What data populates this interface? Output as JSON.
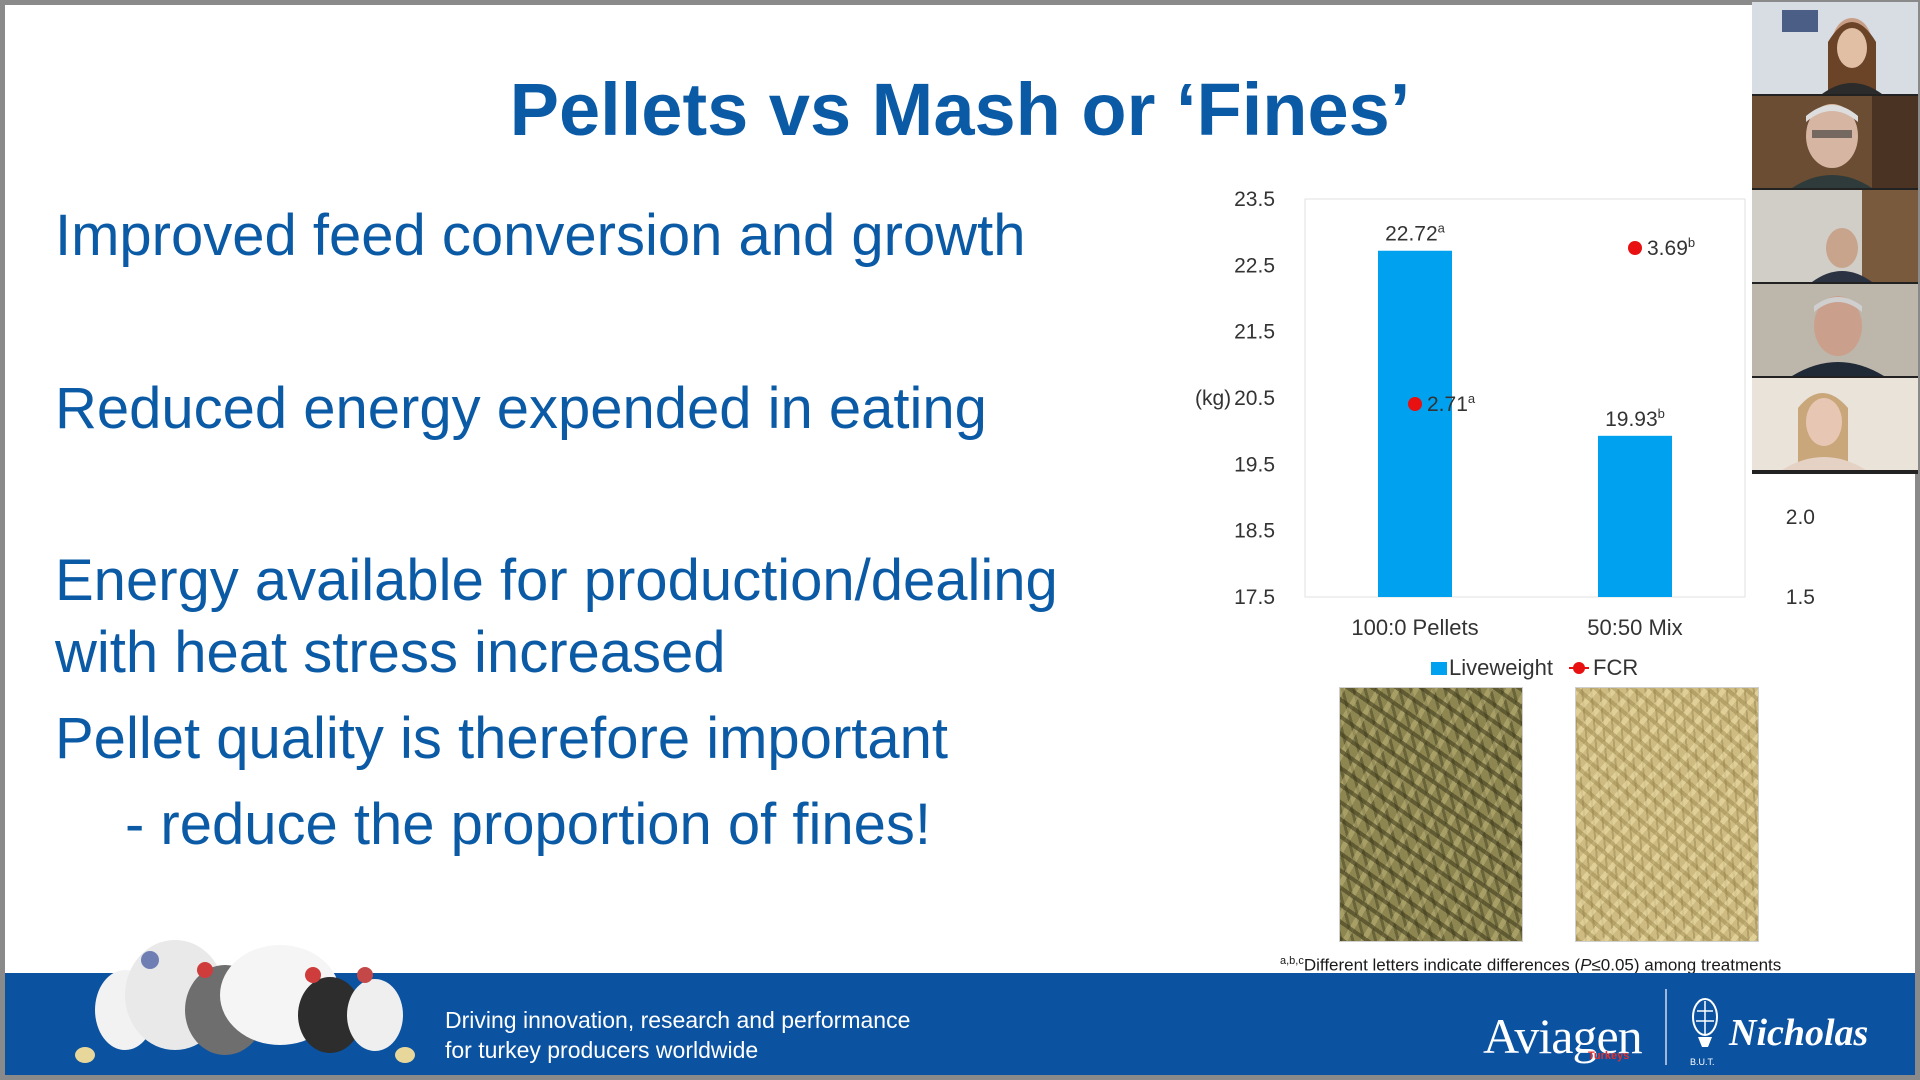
{
  "slide": {
    "title": "Pellets vs Mash or ‘Fines’",
    "bullets": [
      "Improved feed conversion and growth",
      "Reduced energy expended in eating",
      "Energy available for production/dealing",
      "with heat stress increased",
      "Pellet quality is therefore important",
      "- reduce the proportion of fines!"
    ],
    "footnote_sup": "a,b,c",
    "footnote_text": "Different letters indicate differences (",
    "footnote_p": "P",
    "footnote_tail": "≤0.05) among treatments",
    "tagline_line1": "Driving innovation, research and performance",
    "tagline_line2": "for turkey producers worldwide",
    "logo_aviagen": "Aviagen",
    "logo_aviagen_sub": "Turkeys",
    "logo_but": "B.U.T.",
    "logo_nicholas": "Nicholas"
  },
  "chart_data": {
    "type": "bar",
    "categories": [
      "100:0 Pellets",
      "50:50 Mix"
    ],
    "series": [
      {
        "name": "Liveweight",
        "type": "bar",
        "values": [
          22.72,
          19.93
        ],
        "labels": [
          "22.72",
          "19.93"
        ],
        "superscripts": [
          "a",
          "b"
        ],
        "color": "#00a2f0"
      },
      {
        "name": "FCR",
        "type": "scatter",
        "values": [
          2.71,
          3.69
        ],
        "labels": [
          "2.71",
          "3.69"
        ],
        "superscripts": [
          "a",
          "b"
        ],
        "color": "#e81010"
      }
    ],
    "ylabel": "(kg)",
    "ylim": [
      17.5,
      23.5
    ],
    "yticks": [
      "23.5",
      "22.5",
      "21.5",
      "20.5",
      "19.5",
      "18.5",
      "17.5"
    ],
    "y2ticks": [
      "2.0",
      "1.5"
    ],
    "legend_position": "bottom",
    "grid": false
  },
  "colors": {
    "title_blue": "#0b5aa5",
    "band_blue": "#0b52a1",
    "bar_blue": "#00a2f0",
    "fcr_red": "#e81010"
  }
}
